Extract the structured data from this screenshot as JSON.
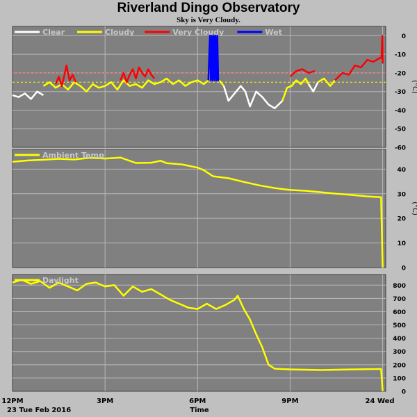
{
  "header": {
    "title": "Riverland Dingo Observatory",
    "subtitle": "Sky is Very Cloudy."
  },
  "colors": {
    "background": "#c0c0c0",
    "plot_background": "#808080",
    "grid": "#b8b8b8",
    "clear": "#ffffff",
    "cloudy": "#ffff00",
    "very_cloudy": "#ff0000",
    "wet": "#0000ff",
    "threshold_red": "#ff5050",
    "threshold_yellow": "#ffff00",
    "axis_text": "#000000",
    "legend_text": "#c8c8c8"
  },
  "chart_data": [
    {
      "type": "line",
      "id": "sky",
      "ylabel": "(°C)",
      "ylim": [
        -60,
        5
      ],
      "yticks": [
        "0",
        "-10",
        "-20",
        "-30",
        "-40",
        "-50",
        "-60"
      ],
      "ytick_values": [
        0,
        -10,
        -20,
        -30,
        -40,
        -50,
        -60
      ],
      "thresholds": [
        -20,
        -25
      ],
      "legend": [
        "Clear",
        "Cloudy",
        "Very Cloudy",
        "Wet"
      ],
      "grid": true,
      "series": [
        {
          "name": "Clear",
          "color": "#ffffff",
          "x": [
            0.0,
            0.2,
            0.4,
            0.6,
            0.8,
            1.0
          ],
          "y": [
            -32,
            -33,
            -31,
            -34,
            -30,
            -32
          ]
        },
        {
          "name": "Clear",
          "color": "#ffffff",
          "x": [
            6.85,
            7.0,
            7.2,
            7.4,
            7.55,
            7.7,
            7.9,
            8.1,
            8.3,
            8.5,
            8.75
          ],
          "y": [
            -27,
            -35,
            -31,
            -27,
            -30,
            -38,
            -30,
            -33,
            -37,
            -39,
            -35
          ]
        },
        {
          "name": "Clear",
          "color": "#ffffff",
          "x": [
            9.6,
            9.75,
            9.9
          ],
          "y": [
            -26,
            -30,
            -25
          ]
        },
        {
          "name": "Cloudy",
          "color": "#ffff00",
          "x": [
            1.0,
            1.2,
            1.4,
            1.6,
            1.8,
            2.0,
            2.2,
            2.4,
            2.6,
            2.8,
            3.0,
            3.2,
            3.4,
            3.6,
            3.8,
            4.0,
            4.2,
            4.4,
            4.6,
            4.8,
            5.0,
            5.2,
            5.4,
            5.6,
            5.8,
            6.0,
            6.2,
            6.35
          ],
          "y": [
            -27,
            -25,
            -28,
            -26,
            -29,
            -25,
            -27,
            -30,
            -26,
            -28,
            -27,
            -25,
            -29,
            -24,
            -27,
            -26,
            -28,
            -24,
            -26,
            -25,
            -23,
            -26,
            -24,
            -27,
            -25,
            -24,
            -26,
            -24
          ]
        },
        {
          "name": "Cloudy",
          "color": "#ffff00",
          "x": [
            6.7,
            6.85
          ],
          "y": [
            -24,
            -27
          ]
        },
        {
          "name": "Cloudy",
          "color": "#ffff00",
          "x": [
            8.75,
            8.9,
            9.05,
            9.2,
            9.35,
            9.5,
            9.6
          ],
          "y": [
            -35,
            -28,
            -27,
            -24,
            -26,
            -23,
            -26
          ]
        },
        {
          "name": "Cloudy",
          "color": "#ffff00",
          "x": [
            9.9,
            10.1,
            10.3,
            10.45
          ],
          "y": [
            -25,
            -23,
            -27,
            -24
          ]
        },
        {
          "name": "Very Cloudy",
          "color": "#ff0000",
          "x": [
            1.4,
            1.5,
            1.6,
            1.7,
            1.75,
            1.85,
            1.95,
            2.05
          ],
          "y": [
            -26,
            -22,
            -27,
            -20,
            -16,
            -24,
            -21,
            -25
          ]
        },
        {
          "name": "Very Cloudy",
          "color": "#ff0000",
          "x": [
            3.5,
            3.6,
            3.7,
            3.8,
            3.9,
            4.0,
            4.1,
            4.2,
            4.3,
            4.4,
            4.5,
            4.6
          ],
          "y": [
            -24,
            -20,
            -25,
            -21,
            -18,
            -23,
            -17,
            -20,
            -22,
            -18,
            -21,
            -23
          ]
        },
        {
          "name": "Very Cloudy",
          "color": "#ff0000",
          "x": [
            9.0,
            9.2,
            9.4,
            9.6,
            9.8
          ],
          "y": [
            -22,
            -19,
            -18,
            -20,
            -19
          ]
        },
        {
          "name": "Very Cloudy",
          "color": "#ff0000",
          "x": [
            10.45,
            10.7,
            10.9,
            11.1,
            11.3,
            11.5,
            11.7,
            11.9,
            11.96,
            11.99,
            12.0
          ],
          "y": [
            -24,
            -20,
            -21,
            -16,
            -17,
            -13,
            -14,
            -12,
            -12,
            0,
            -15
          ]
        },
        {
          "name": "Wet",
          "color": "#0000ff",
          "x": [
            6.35,
            6.4,
            6.43,
            6.46,
            6.49,
            6.52,
            6.55,
            6.58,
            6.61,
            6.64,
            6.67,
            6.7
          ],
          "y": [
            -24,
            0,
            -24,
            0,
            -24,
            0,
            -24,
            0,
            -24,
            0,
            -24,
            -24
          ]
        }
      ]
    },
    {
      "type": "line",
      "id": "ambient",
      "ylabel": "(°C)",
      "ylim": [
        0,
        48
      ],
      "yticks": [
        "40",
        "30",
        "20",
        "10",
        "0"
      ],
      "ytick_values": [
        40,
        30,
        20,
        10,
        0
      ],
      "legend": [
        "Ambient Temp"
      ],
      "grid": true,
      "series": [
        {
          "name": "Ambient Temp",
          "color": "#ffff00",
          "x": [
            0.0,
            0.5,
            1.0,
            1.5,
            2.0,
            2.5,
            3.0,
            3.5,
            4.0,
            4.5,
            4.8,
            5.0,
            5.5,
            6.0,
            6.2,
            6.5,
            7.0,
            7.5,
            8.0,
            8.5,
            9.0,
            9.5,
            10.0,
            10.5,
            11.0,
            11.5,
            11.95,
            12.0
          ],
          "y": [
            43,
            43.5,
            43.8,
            44.2,
            43.9,
            44.6,
            44.3,
            44.7,
            42.5,
            42.6,
            43.4,
            42.4,
            41.9,
            40.6,
            39.6,
            37.1,
            36.3,
            34.8,
            33.4,
            32.3,
            31.5,
            31.2,
            30.6,
            30.0,
            29.5,
            28.9,
            28.6,
            0
          ]
        }
      ]
    },
    {
      "type": "line",
      "id": "daylight",
      "ylabel": "",
      "ylim": [
        0,
        880
      ],
      "yticks": [
        "800",
        "700",
        "600",
        "500",
        "400",
        "300",
        "200",
        "100",
        "0"
      ],
      "ytick_values": [
        800,
        700,
        600,
        500,
        400,
        300,
        200,
        100,
        0
      ],
      "legend": [
        "Daylight"
      ],
      "grid": true,
      "series": [
        {
          "name": "Daylight",
          "color": "#ffff00",
          "x": [
            0.0,
            0.3,
            0.6,
            0.9,
            1.2,
            1.5,
            1.8,
            2.1,
            2.4,
            2.7,
            3.0,
            3.3,
            3.6,
            3.9,
            4.2,
            4.5,
            4.8,
            5.1,
            5.4,
            5.7,
            6.0,
            6.3,
            6.6,
            6.9,
            7.2,
            7.3,
            7.5,
            7.7,
            7.9,
            8.1,
            8.3,
            8.5,
            9.0,
            10.0,
            11.0,
            11.95,
            12.0
          ],
          "y": [
            820,
            840,
            810,
            830,
            780,
            820,
            790,
            760,
            810,
            820,
            790,
            800,
            720,
            790,
            750,
            770,
            730,
            690,
            660,
            630,
            620,
            660,
            620,
            650,
            690,
            720,
            620,
            540,
            430,
            330,
            200,
            170,
            165,
            160,
            165,
            168,
            0
          ]
        }
      ]
    }
  ],
  "x_axis": {
    "ticks": [
      {
        "label": "12PM",
        "value": 0
      },
      {
        "label": "3PM",
        "value": 3
      },
      {
        "label": "6PM",
        "value": 6
      },
      {
        "label": "9PM",
        "value": 9
      },
      {
        "label": "24 Wed",
        "value": 12
      }
    ],
    "date_label": "23 Tue Feb 2016",
    "xlabel": "Time",
    "xlim": [
      0,
      12.1
    ]
  }
}
